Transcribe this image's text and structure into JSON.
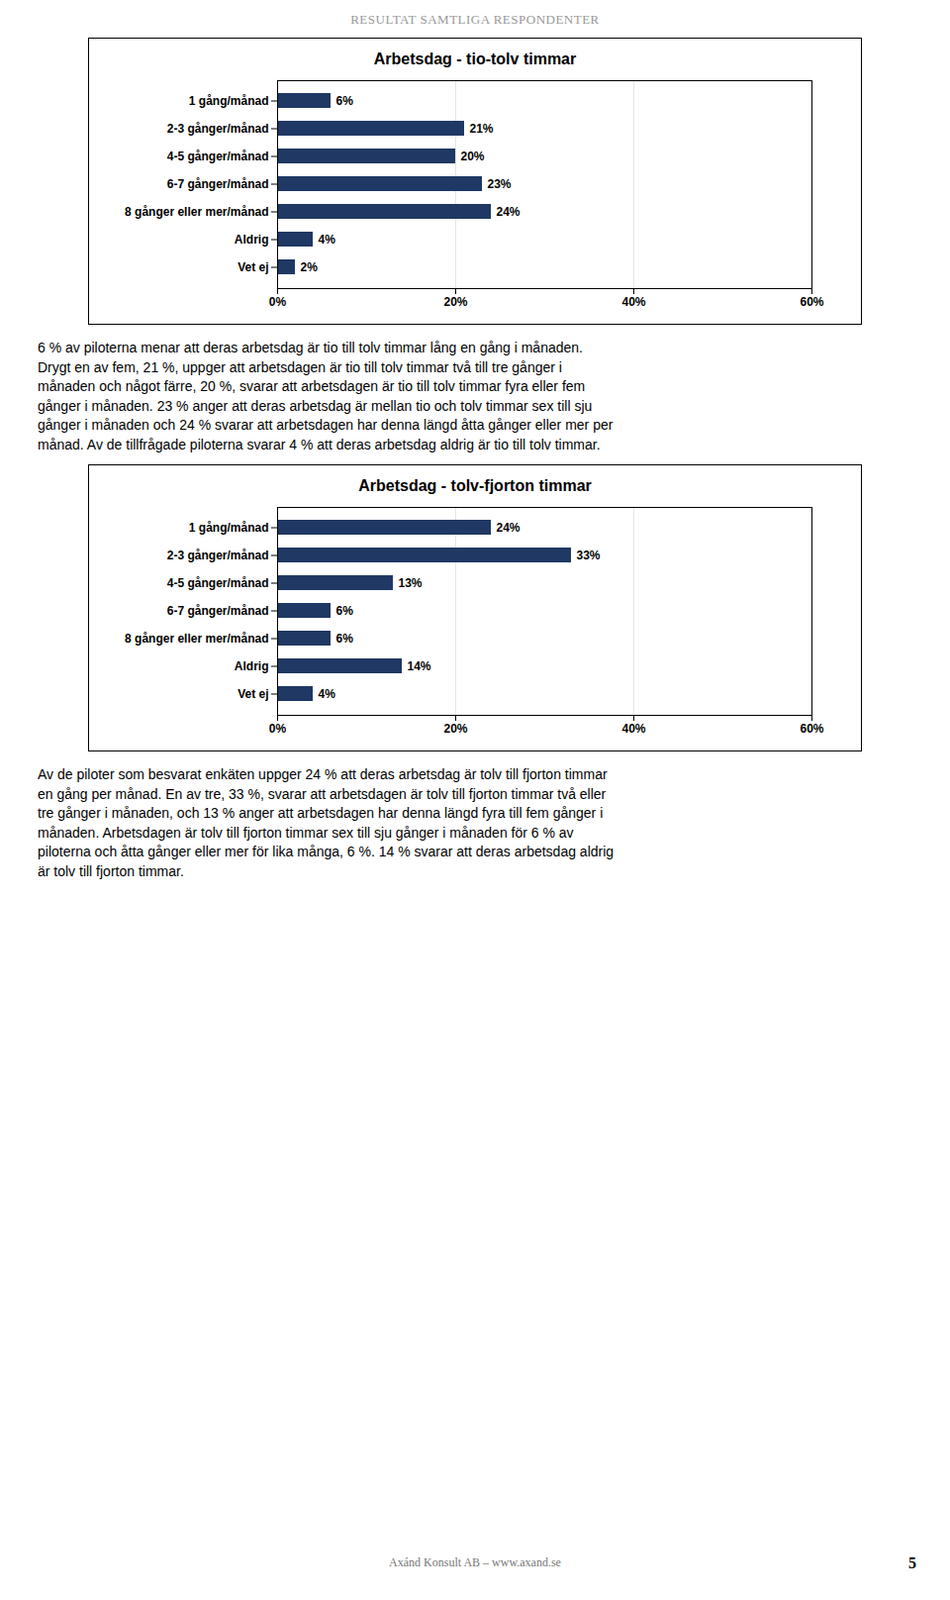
{
  "title": "RESULTAT SAMTLIGA RESPONDENTER",
  "annotations": [
    "Axánd Konsult AB – www.axand.se",
    "5"
  ],
  "chart_data": [
    {
      "type": "bar",
      "title": "Arbetsdag - tio-tolv timmar",
      "orientation": "horizontal",
      "categories": [
        "1 gång/månad",
        "2-3 gånger/månad",
        "4-5 gånger/månad",
        "6-7 gånger/månad",
        "8 gånger eller mer/månad",
        "Aldrig",
        "Vet ej"
      ],
      "values": [
        6,
        21,
        20,
        23,
        24,
        4,
        2
      ],
      "value_labels": [
        "6%",
        "21%",
        "20%",
        "23%",
        "24%",
        "4%",
        "2%"
      ],
      "data_labels": true,
      "color": "#1F3864",
      "xlim": [
        0,
        60
      ],
      "xticks": [
        {
          "value": 0,
          "label": "0%"
        },
        {
          "value": 20,
          "label": "20%"
        },
        {
          "value": 40,
          "label": "40%"
        },
        {
          "value": 60,
          "label": "60%"
        }
      ],
      "grid": true,
      "annotations": [
        "6 % av piloterna menar att deras arbetsdag är tio till tolv timmar lång en gång i månaden.",
        "Drygt en av fem, 21 %, uppger att arbetsdagen är tio till tolv timmar två till tre gånger i",
        "månaden och något färre, 20 %, svarar att arbetsdagen är tio till tolv timmar fyra eller fem",
        "gånger i månaden. 23 % anger att deras arbetsdag är mellan tio och tolv timmar sex till sju",
        "gånger i månaden och 24 % svarar att arbetsdagen har denna längd åtta gånger eller mer per",
        "månad. Av de tillfrågade piloterna svarar 4 % att deras arbetsdag aldrig är tio till tolv timmar."
      ]
    },
    {
      "type": "bar",
      "title": "Arbetsdag - tolv-fjorton timmar",
      "orientation": "horizontal",
      "categories": [
        "1 gång/månad",
        "2-3 gånger/månad",
        "4-5 gånger/månad",
        "6-7 gånger/månad",
        "8 gånger eller mer/månad",
        "Aldrig",
        "Vet ej"
      ],
      "values": [
        24,
        33,
        13,
        6,
        6,
        14,
        4
      ],
      "value_labels": [
        "24%",
        "33%",
        "13%",
        "6%",
        "6%",
        "14%",
        "4%"
      ],
      "data_labels": true,
      "color": "#1F3864",
      "xlim": [
        0,
        60
      ],
      "xticks": [
        {
          "value": 0,
          "label": "0%"
        },
        {
          "value": 20,
          "label": "20%"
        },
        {
          "value": 40,
          "label": "40%"
        },
        {
          "value": 60,
          "label": "60%"
        }
      ],
      "grid": true,
      "annotations": [
        "Av de piloter som besvarat enkäten uppger 24 % att deras arbetsdag är tolv till fjorton timmar",
        "en gång per månad. En av tre, 33 %, svarar att arbetsdagen är tolv till fjorton timmar två eller",
        "tre gånger i månaden, och 13 % anger att arbetsdagen har denna längd fyra till fem gånger i",
        "månaden. Arbetsdagen är tolv till fjorton timmar sex till sju gånger i månaden för 6 % av",
        "piloterna och åtta gånger eller mer för lika många, 6 %. 14 % svarar att deras arbetsdag aldrig",
        "är tolv till fjorton timmar."
      ]
    }
  ]
}
